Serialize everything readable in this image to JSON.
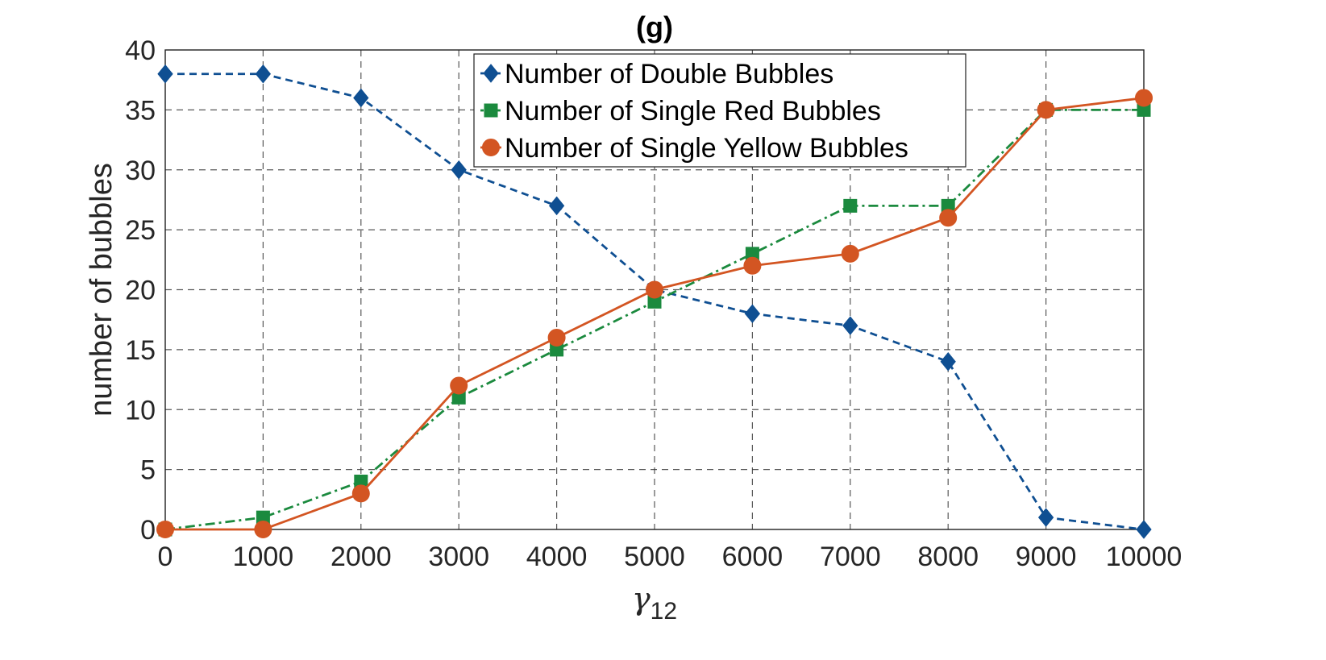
{
  "chart_data": {
    "type": "line",
    "title": "(g)",
    "xlabel": "γ",
    "xlabel_subscript": "12",
    "ylabel": "number of bubbles",
    "x": [
      0,
      1000,
      2000,
      3000,
      4000,
      5000,
      6000,
      7000,
      8000,
      9000,
      10000
    ],
    "x_tick_labels": [
      "0",
      "1000",
      "2000",
      "3000",
      "4000",
      "5000",
      "6000",
      "7000",
      "8000",
      "9000",
      "10000"
    ],
    "y_tick_labels": [
      "0",
      "5",
      "10",
      "15",
      "20",
      "25",
      "30",
      "35",
      "40"
    ],
    "xlim": [
      0,
      10000
    ],
    "ylim": [
      0,
      40
    ],
    "grid": true,
    "legend_position": "top-center",
    "series": [
      {
        "name": "Number of Double Bubbles",
        "values": [
          38,
          38,
          36,
          30,
          27,
          20,
          18,
          17,
          14,
          1,
          0
        ],
        "color": "#0f4f92",
        "marker": "diamond",
        "line_style": "dashed"
      },
      {
        "name": "Number of Single Red Bubbles",
        "values": [
          0,
          1,
          4,
          11,
          15,
          19,
          23,
          27,
          27,
          35,
          35
        ],
        "color": "#1b8a3e",
        "marker": "square",
        "line_style": "dash-dot"
      },
      {
        "name": "Number of Single Yellow Bubbles",
        "values": [
          0,
          0,
          3,
          12,
          16,
          20,
          22,
          23,
          26,
          35,
          36
        ],
        "color": "#d35522",
        "marker": "circle",
        "line_style": "solid"
      }
    ]
  }
}
